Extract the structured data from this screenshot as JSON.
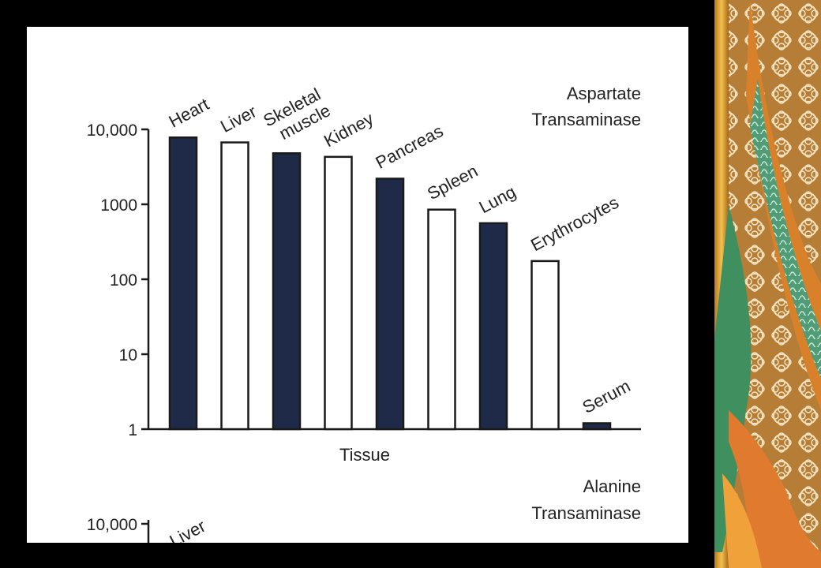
{
  "chart_data": [
    {
      "type": "bar",
      "title": [
        "Aspartate",
        "Transaminase"
      ],
      "xlabel": "Tissue",
      "ylabel": "",
      "yscale": "log",
      "ylim": [
        1,
        10000
      ],
      "yticks": [
        "1",
        "10",
        "100",
        "1000",
        "10,000"
      ],
      "categories": [
        [
          "Heart"
        ],
        [
          "Liver"
        ],
        [
          "Skeletal",
          "muscle"
        ],
        [
          "Kidney"
        ],
        [
          "Pancreas"
        ],
        [
          "Spleen"
        ],
        [
          "Lung"
        ],
        [
          "Erythrocytes"
        ],
        [
          "Serum"
        ]
      ],
      "values": [
        7800,
        6700,
        4800,
        4300,
        2200,
        850,
        560,
        175,
        1.2
      ],
      "fills": [
        "dark",
        "light",
        "dark",
        "light",
        "dark",
        "light",
        "dark",
        "light",
        "dark"
      ],
      "grid": false,
      "legend": "none"
    },
    {
      "type": "bar",
      "title": [
        "Alanine",
        "Transaminase"
      ],
      "yscale": "log",
      "yticks_visible": [
        "10,000"
      ],
      "categories_visible_partial": [
        "Liver"
      ]
    }
  ],
  "colors": {
    "dark_bar": "#1f2a48",
    "light_bar": "#ffffff",
    "axis": "#1a1a1a",
    "background": "#000000",
    "panel": "#ffffff"
  },
  "decoration": {
    "icon": "floral-pattern-strip"
  }
}
